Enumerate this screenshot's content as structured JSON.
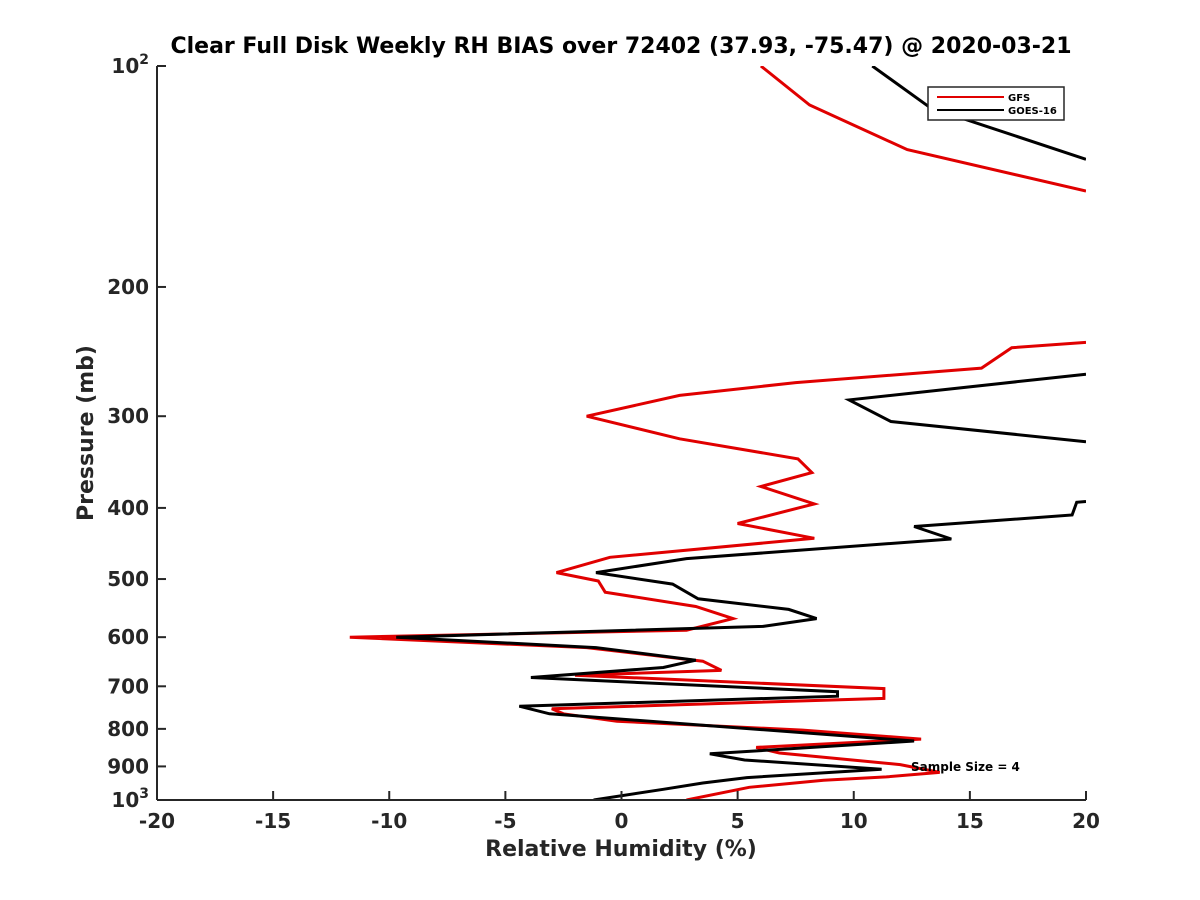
{
  "chart_data": {
    "type": "line",
    "title": "Clear Full Disk Weekly RH BIAS over 72402 (37.93, -75.47) @ 2020-03-21",
    "xlabel": "Relative Humidity (%)",
    "ylabel": "Pressure (mb)",
    "xlim": [
      -20,
      20
    ],
    "ylim": [
      100,
      1000
    ],
    "yscale": "log",
    "y_reversed": true,
    "grid": false,
    "legend_position": "top-right",
    "x_ticks": [
      {
        "value": -20,
        "label": "-20"
      },
      {
        "value": -15,
        "label": "-15"
      },
      {
        "value": -10,
        "label": "-10"
      },
      {
        "value": -5,
        "label": "-5"
      },
      {
        "value": 0,
        "label": "0"
      },
      {
        "value": 5,
        "label": "5"
      },
      {
        "value": 10,
        "label": "10"
      },
      {
        "value": 15,
        "label": "15"
      },
      {
        "value": 20,
        "label": "20"
      }
    ],
    "y_ticks": [
      {
        "value": 100,
        "base": "10",
        "exp": "2"
      },
      {
        "value": 200,
        "label": "200"
      },
      {
        "value": 300,
        "label": "300"
      },
      {
        "value": 400,
        "label": "400"
      },
      {
        "value": 500,
        "label": "500"
      },
      {
        "value": 600,
        "label": "600"
      },
      {
        "value": 700,
        "label": "700"
      },
      {
        "value": 800,
        "label": "800"
      },
      {
        "value": 900,
        "label": "900"
      },
      {
        "value": 1000,
        "base": "10",
        "exp": "3"
      }
    ],
    "series": [
      {
        "name": "GFS",
        "color": "#e00000",
        "segments": [
          [
            [
              6.0,
              100
            ],
            [
              8.1,
              113
            ],
            [
              12.3,
              130
            ],
            [
              20,
              148
            ]
          ],
          [
            [
              20,
              238
            ],
            [
              16.8,
              242
            ],
            [
              15.5,
              258
            ],
            [
              7.5,
              270
            ],
            [
              2.5,
              281
            ],
            [
              -1.5,
              300
            ],
            [
              2.5,
              322
            ],
            [
              7.6,
              343
            ],
            [
              8.2,
              358
            ],
            [
              6.0,
              374
            ],
            [
              8.3,
              395
            ],
            [
              5.0,
              420
            ],
            [
              8.3,
              440
            ],
            [
              -0.5,
              467
            ],
            [
              -2.8,
              490
            ],
            [
              -1.0,
              503
            ],
            [
              -0.7,
              521
            ],
            [
              3.2,
              545
            ],
            [
              4.8,
              566
            ],
            [
              2.8,
              587
            ],
            [
              -11.7,
              600
            ],
            [
              -1.5,
              620
            ],
            [
              3.5,
              647
            ],
            [
              4.3,
              666
            ],
            [
              -2.0,
              676
            ],
            [
              11.3,
              705
            ],
            [
              11.3,
              727
            ],
            [
              -3.0,
              751
            ],
            [
              -2.5,
              763
            ],
            [
              -0.2,
              781
            ],
            [
              7.8,
              803
            ],
            [
              12.9,
              826
            ],
            [
              5.8,
              848
            ],
            [
              6.8,
              863
            ],
            [
              12.0,
              895
            ],
            [
              13.7,
              917
            ],
            [
              11.4,
              930
            ],
            [
              8.7,
              940
            ],
            [
              5.5,
              961
            ],
            [
              2.8,
              1000
            ]
          ]
        ]
      },
      {
        "name": "GOES-16",
        "color": "#000000",
        "segments": [
          [
            [
              10.8,
              100
            ],
            [
              13.3,
              114
            ],
            [
              20,
              134
            ]
          ],
          [
            [
              20,
              263
            ],
            [
              9.8,
              285
            ],
            [
              11.6,
              305
            ],
            [
              20,
              325
            ]
          ],
          [
            [
              20,
              392
            ],
            [
              19.6,
              393
            ],
            [
              19.4,
              409
            ],
            [
              12.6,
              424
            ],
            [
              14.2,
              441
            ],
            [
              2.8,
              469
            ],
            [
              -1.1,
              490
            ],
            [
              2.2,
              508
            ],
            [
              3.3,
              532
            ],
            [
              7.2,
              550
            ],
            [
              8.4,
              566
            ],
            [
              6.1,
              580
            ],
            [
              -9.7,
              600
            ],
            [
              -1.1,
              620
            ],
            [
              3.2,
              645
            ],
            [
              1.8,
              660
            ],
            [
              -3.9,
              681
            ],
            [
              9.3,
              712
            ],
            [
              9.3,
              722
            ],
            [
              -4.4,
              745
            ],
            [
              -3.1,
              763
            ],
            [
              12.6,
              831
            ],
            [
              3.8,
              865
            ],
            [
              5.3,
              882
            ],
            [
              11.2,
              908
            ],
            [
              5.4,
              932
            ],
            [
              3.5,
              948
            ],
            [
              1.8,
              967
            ],
            [
              -1.2,
              1000
            ]
          ]
        ]
      }
    ],
    "annotation": "Sample Size = 4",
    "legend": [
      "GFS",
      "GOES-16"
    ]
  }
}
